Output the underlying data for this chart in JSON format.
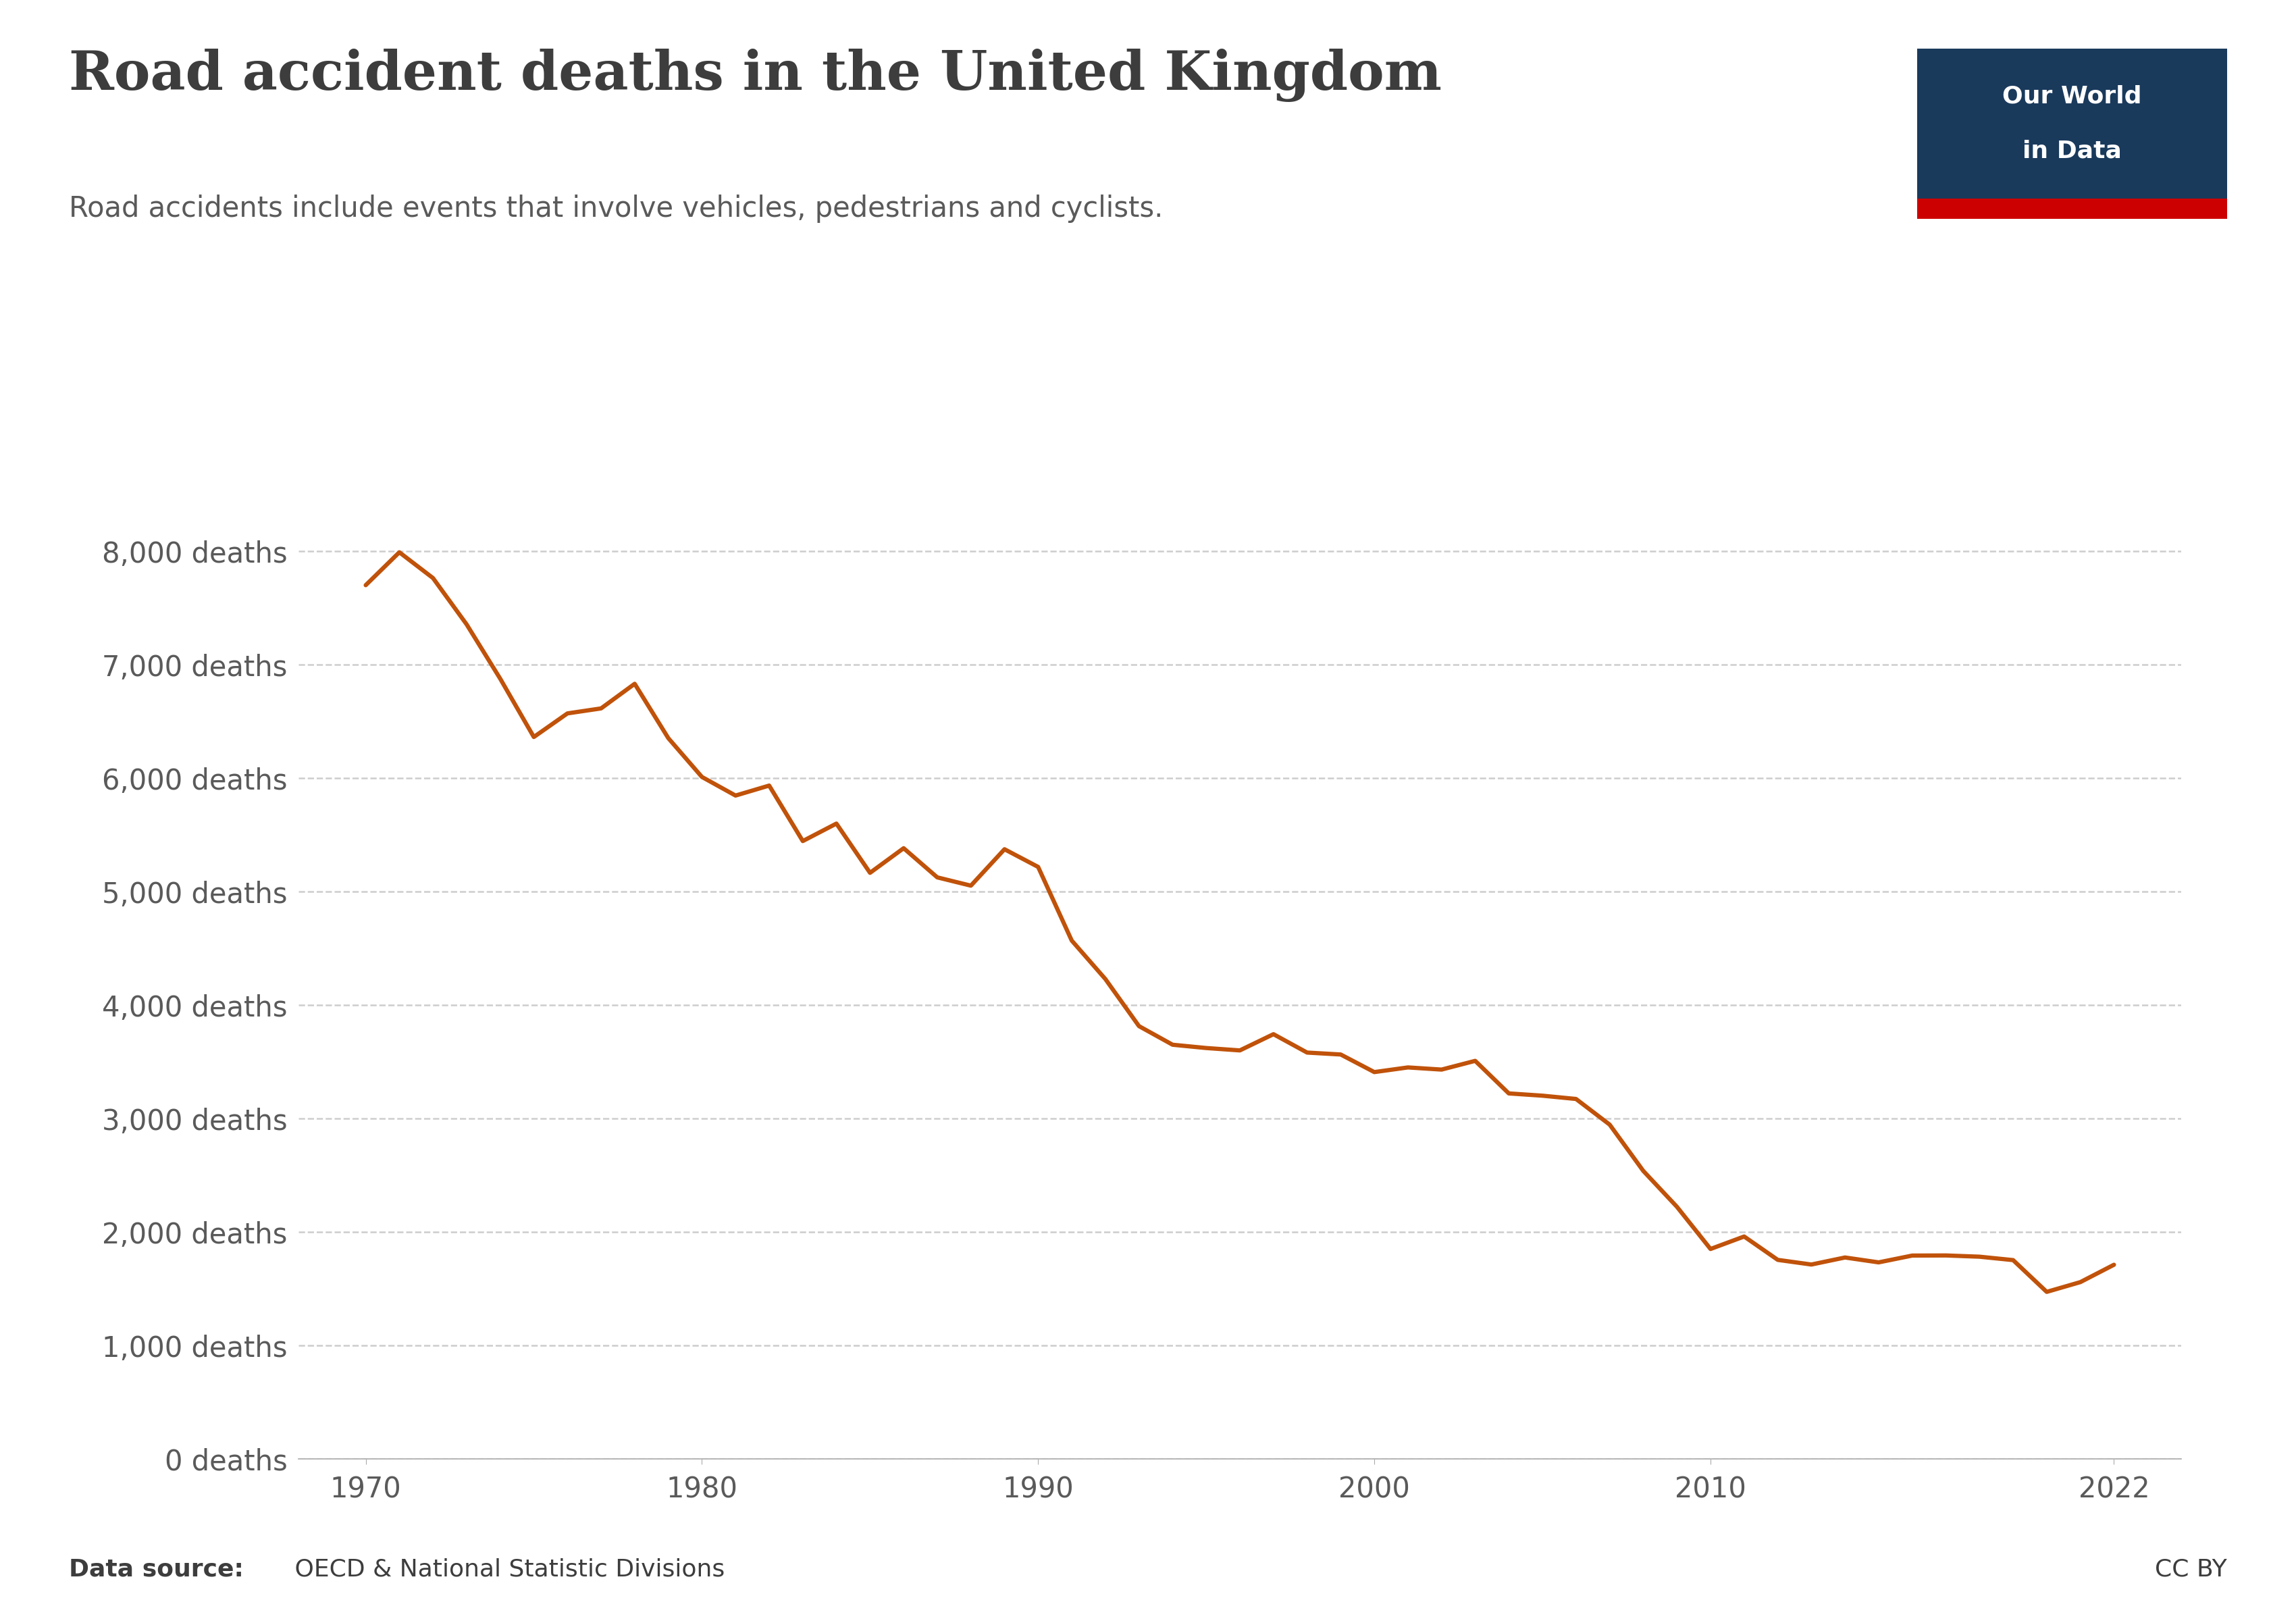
{
  "title": "Road accident deaths in the United Kingdom",
  "subtitle": "Road accidents include events that involve vehicles, pedestrians and cyclists.",
  "source_label_bold": "Data source:",
  "source_label_rest": " OECD & National Statistic Divisions",
  "cc_label": "CC BY",
  "logo_text1": "Our World",
  "logo_text2": "in Data",
  "line_color": "#C0520A",
  "background_color": "#ffffff",
  "title_color": "#3d3d3d",
  "subtitle_color": "#5a5a5a",
  "axis_label_color": "#5a5a5a",
  "grid_color": "#c8c8c8",
  "logo_bg_color": "#1a3a5c",
  "logo_red_color": "#cc0000",
  "years": [
    1970,
    1971,
    1972,
    1973,
    1974,
    1975,
    1976,
    1977,
    1978,
    1979,
    1980,
    1981,
    1982,
    1983,
    1984,
    1985,
    1986,
    1987,
    1988,
    1989,
    1990,
    1991,
    1992,
    1993,
    1994,
    1995,
    1996,
    1997,
    1998,
    1999,
    2000,
    2001,
    2002,
    2003,
    2004,
    2005,
    2006,
    2007,
    2008,
    2009,
    2010,
    2011,
    2012,
    2013,
    2014,
    2015,
    2016,
    2017,
    2018,
    2019,
    2020,
    2021,
    2022
  ],
  "deaths": [
    7700,
    7990,
    7763,
    7355,
    6876,
    6362,
    6570,
    6614,
    6831,
    6352,
    6010,
    5846,
    5934,
    5445,
    5599,
    5165,
    5382,
    5125,
    5052,
    5373,
    5217,
    4568,
    4229,
    3814,
    3650,
    3621,
    3600,
    3743,
    3581,
    3564,
    3409,
    3450,
    3431,
    3508,
    3221,
    3201,
    3172,
    2946,
    2538,
    2222,
    1850,
    1960,
    1754,
    1713,
    1775,
    1732,
    1792,
    1793,
    1782,
    1752,
    1472,
    1558,
    1711
  ]
}
